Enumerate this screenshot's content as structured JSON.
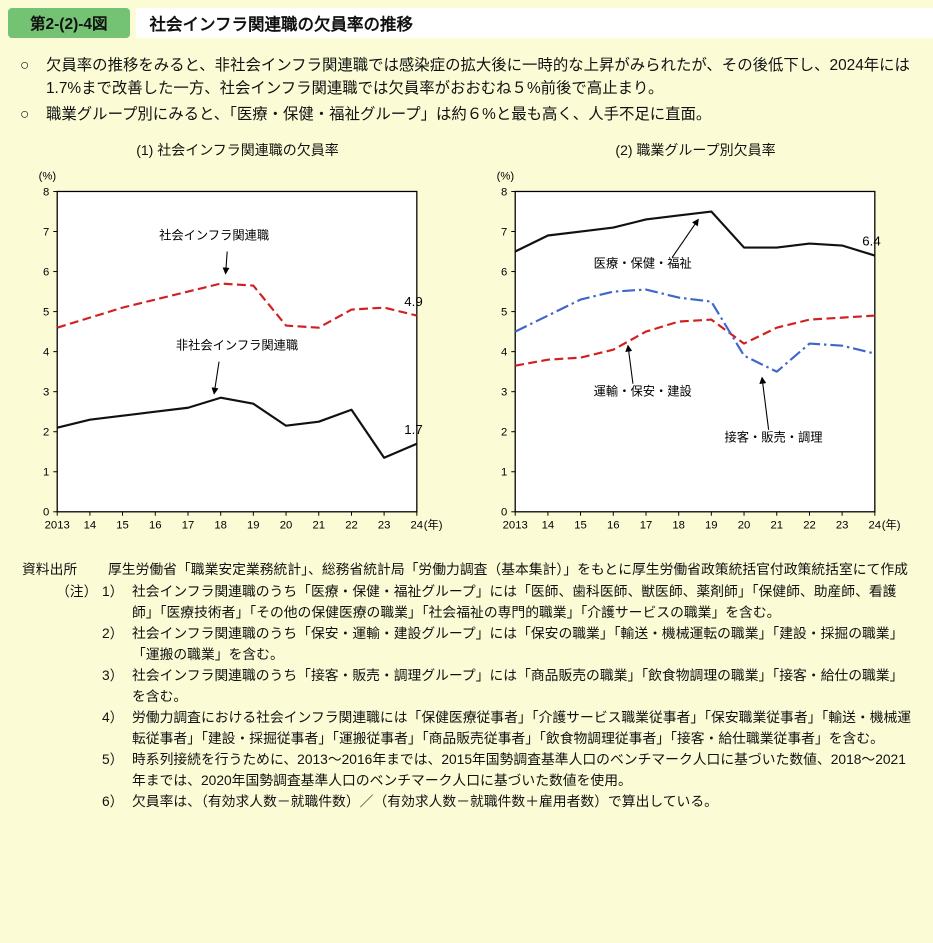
{
  "page": {
    "figure_badge": "第2-(2)-4図",
    "title": "社会インフラ関連職の欠員率の推移",
    "accent_green": "#74c274",
    "background": "#fbfcd6"
  },
  "bullets": [
    {
      "marker": "○",
      "text": "欠員率の推移をみると、非社会インフラ関連職では感染症の拡大後に一時的な上昇がみられたが、その後低下し、2024年には1.7%まで改善した一方、社会インフラ関連職では欠員率がおおむね５%前後で高止まり。"
    },
    {
      "marker": "○",
      "text": "職業グループ別にみると、「医療・保健・福祉グループ」は約６%と最も高く、人手不足に直面。"
    }
  ],
  "chart_data": [
    {
      "type": "line",
      "title": "(1) 社会インフラ関連職の欠員率",
      "y_unit": "(%)",
      "x_suffix": "(年)",
      "ylim": [
        0,
        8
      ],
      "ytick_step": 1,
      "grid": false,
      "legend_position": "annotated",
      "categories": [
        "2013",
        "14",
        "15",
        "16",
        "17",
        "18",
        "19",
        "20",
        "21",
        "22",
        "23",
        "24"
      ],
      "series": [
        {
          "name": "社会インフラ関連職",
          "color": "#d02020",
          "dash": "dashed",
          "values": [
            4.6,
            4.85,
            5.1,
            5.3,
            5.5,
            5.7,
            5.65,
            4.65,
            4.6,
            5.05,
            5.1,
            4.9
          ],
          "end_label": "4.9"
        },
        {
          "name": "非社会インフラ関連職",
          "color": "#111111",
          "dash": "solid",
          "values": [
            2.1,
            2.3,
            2.4,
            2.5,
            2.6,
            2.85,
            2.7,
            2.15,
            2.25,
            2.55,
            1.35,
            1.7
          ],
          "end_label": "1.7"
        }
      ],
      "annotations": [
        {
          "text": "社会インフラ関連職",
          "tx": 4.8,
          "tv": 6.8,
          "ax": 5.2,
          "av": 6.5,
          "bx": 5.15,
          "bv": 5.95
        },
        {
          "text": "非社会インフラ関連職",
          "tx": 5.5,
          "tv": 4.05,
          "ax": 4.95,
          "av": 3.75,
          "bx": 4.8,
          "bv": 2.95
        }
      ]
    },
    {
      "type": "line",
      "title": "(2) 職業グループ別欠員率",
      "y_unit": "(%)",
      "x_suffix": "(年)",
      "ylim": [
        0,
        8
      ],
      "ytick_step": 1,
      "grid": false,
      "legend_position": "annotated",
      "categories": [
        "2013",
        "14",
        "15",
        "16",
        "17",
        "18",
        "19",
        "20",
        "21",
        "22",
        "23",
        "24"
      ],
      "series": [
        {
          "name": "医療・保健・福祉",
          "color": "#111111",
          "dash": "solid",
          "values": [
            6.5,
            6.9,
            7.0,
            7.1,
            7.3,
            7.4,
            7.5,
            6.6,
            6.6,
            6.7,
            6.65,
            6.4
          ],
          "end_label": "6.4"
        },
        {
          "name": "運輸・保安・建設",
          "color": "#d02020",
          "dash": "dashed",
          "values": [
            3.65,
            3.8,
            3.85,
            4.05,
            4.5,
            4.75,
            4.8,
            4.2,
            4.6,
            4.8,
            4.85,
            4.9
          ]
        },
        {
          "name": "接客・販売・調理",
          "color": "#3e66cb",
          "dash": "dashdot",
          "values": [
            4.5,
            4.9,
            5.3,
            5.5,
            5.55,
            5.35,
            5.25,
            3.9,
            3.5,
            4.2,
            4.15,
            3.95
          ]
        }
      ],
      "annotations": [
        {
          "text": "医療・保健・福祉",
          "tx": 3.9,
          "tv": 6.1,
          "ax": 4.8,
          "av": 6.35,
          "bx": 5.6,
          "bv": 7.3
        },
        {
          "text": "運輸・保安・建設",
          "tx": 3.9,
          "tv": 2.9,
          "ax": 3.6,
          "av": 3.2,
          "bx": 3.45,
          "bv": 4.15
        },
        {
          "text": "接客・販売・調理",
          "tx": 7.9,
          "tv": 1.75,
          "ax": 7.75,
          "av": 2.05,
          "bx": 7.55,
          "bv": 3.35
        }
      ]
    }
  ],
  "source": {
    "label": "資料出所",
    "text": "厚生労働省「職業安定業務統計」、総務省統計局「労働力調査（基本集計）」をもとに厚生労働省政策統括官付政策統括室にて作成"
  },
  "notes": {
    "label": "（注）",
    "items": [
      {
        "num": "1）",
        "text": "社会インフラ関連職のうち「医療・保健・福祉グループ」には「医師、歯科医師、獣医師、薬剤師」「保健師、助産師、看護師」「医療技術者」「その他の保健医療の職業」「社会福祉の専門的職業」「介護サービスの職業」を含む。"
      },
      {
        "num": "2）",
        "text": "社会インフラ関連職のうち「保安・運輸・建設グループ」には「保安の職業」「輸送・機械運転の職業」「建設・採掘の職業」「運搬の職業」を含む。"
      },
      {
        "num": "3）",
        "text": "社会インフラ関連職のうち「接客・販売・調理グループ」には「商品販売の職業」「飲食物調理の職業」「接客・給仕の職業」を含む。"
      },
      {
        "num": "4）",
        "text": "労働力調査における社会インフラ関連職には「保健医療従事者」「介護サービス職業従事者」「保安職業従事者」「輸送・機械運転従事者」「建設・採掘従事者」「運搬従事者」「商品販売従事者」「飲食物調理従事者」「接客・給仕職業従事者」を含む。"
      },
      {
        "num": "5）",
        "text": "時系列接続を行うために、2013～2016年までは、2015年国勢調査基準人口のベンチマーク人口に基づいた数値、2018～2021年までは、2020年国勢調査基準人口のベンチマーク人口に基づいた数値を使用。"
      },
      {
        "num": "6）",
        "text": "欠員率は、（有効求人数－就職件数）／（有効求人数－就職件数＋雇用者数）で算出している。"
      }
    ]
  }
}
